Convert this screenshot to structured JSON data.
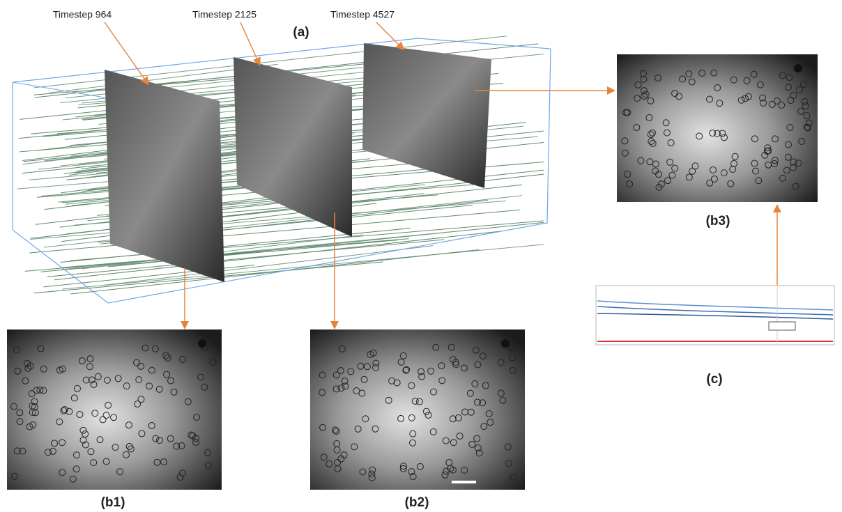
{
  "figure": {
    "overview_label": "(a)",
    "timesteps": [
      "Timestep 964",
      "Timestep 2125",
      "Timestep 4527"
    ],
    "panels": [
      "(b1)",
      "(b2)",
      "(b3)"
    ],
    "plot_label": "(c)"
  }
}
